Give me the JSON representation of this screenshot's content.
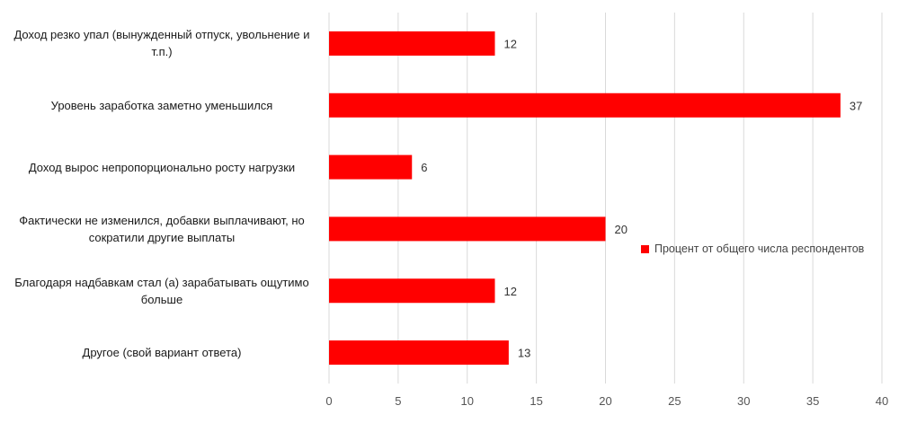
{
  "chart_data": {
    "type": "bar",
    "orientation": "horizontal",
    "categories": [
      "Доход резко упал (вынужденный отпуск, увольнение и т.п.)",
      "Уровень заработка заметно уменьшился",
      "Доход вырос непропорционально росту нагрузки",
      "Фактически не изменился, добавки выплачивают, но сократили другие выплаты",
      "Благодаря надбавкам стал (а) зарабатывать ощутимо больше",
      "Другое (свой вариант ответа)"
    ],
    "series": [
      {
        "name": "Процент от общего числа респондентов",
        "values": [
          12,
          37,
          6,
          20,
          12,
          13
        ],
        "color": "#ff0000"
      }
    ],
    "xlim": [
      0,
      40
    ],
    "x_ticks": [
      0,
      5,
      10,
      15,
      20,
      25,
      30,
      35,
      40
    ],
    "grid": true,
    "legend_position": "right",
    "data_labels": true
  }
}
